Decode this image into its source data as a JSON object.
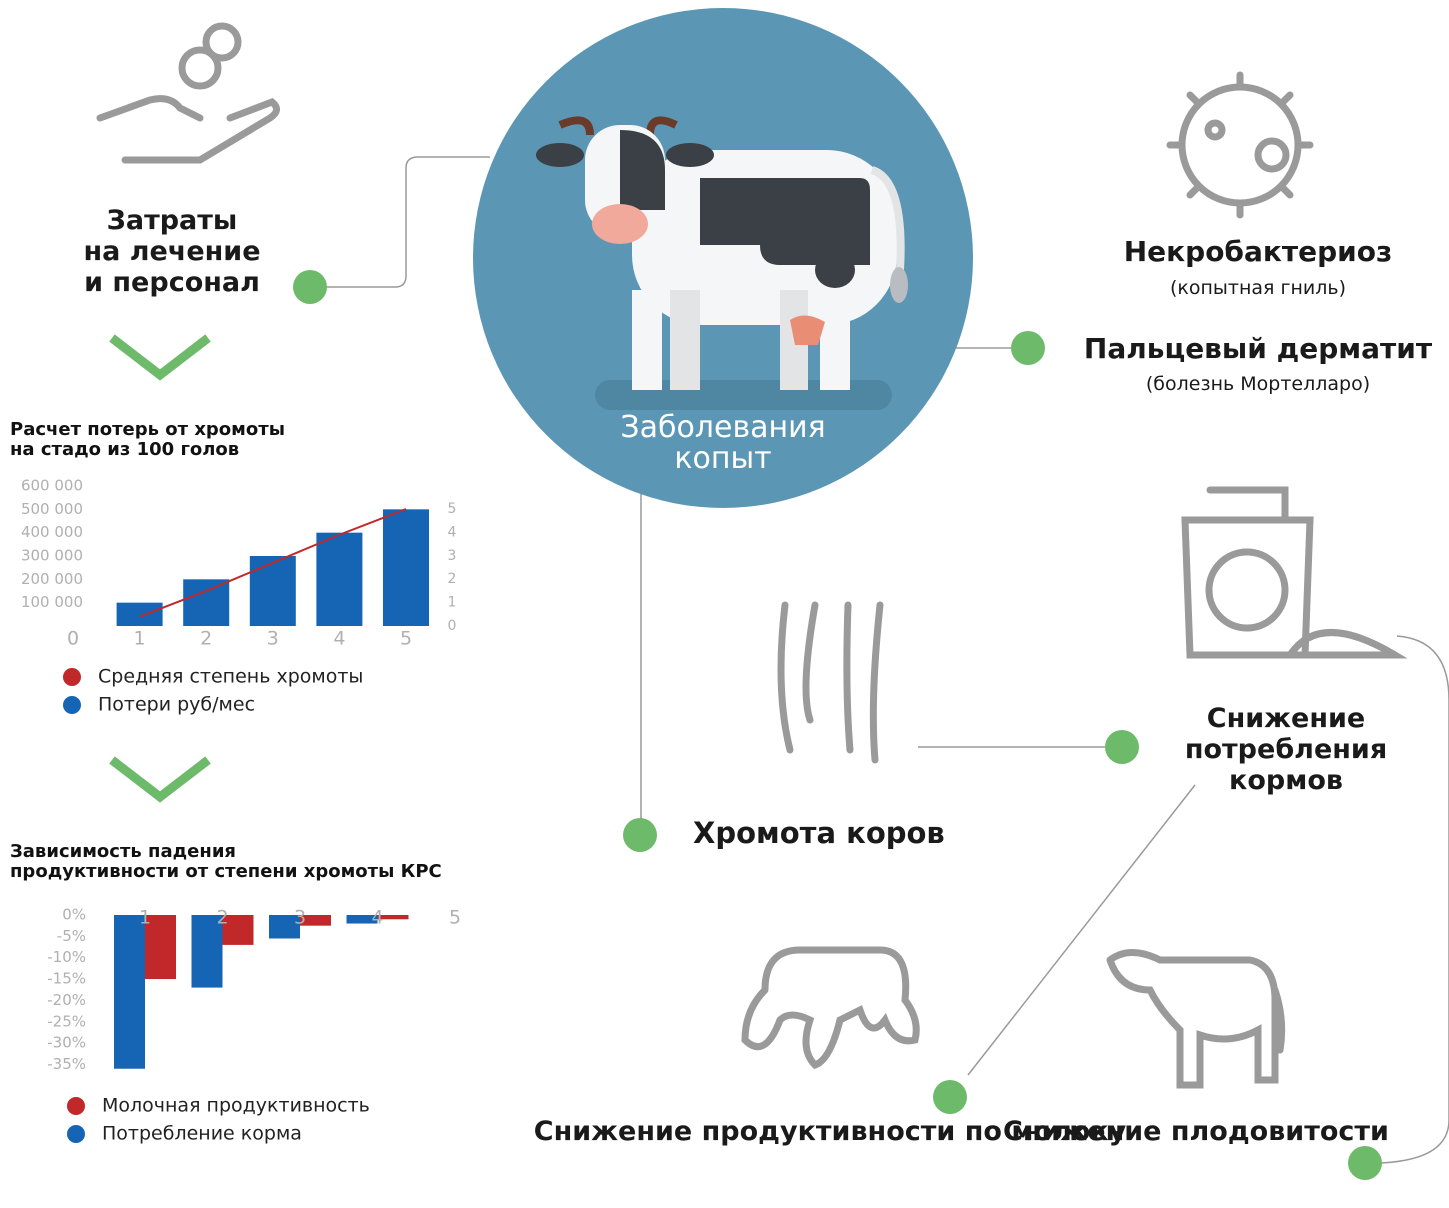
{
  "nodes": {
    "costs": "Затраты\nна лечение\nи персонал",
    "center": "Заболевания\nкопыт",
    "necro": {
      "title": "Некробактериоз",
      "subtitle": "(копытная гниль)"
    },
    "dermatitis": {
      "title": "Пальцевый дерматит",
      "subtitle": "(болезнь Мортелларо)"
    },
    "feed": "Снижение\nпотребления\nкормов",
    "lameness": "Хромота коров",
    "milk": "Снижение\nпродуктивности\nпо молоку",
    "fertility": "Снижение\nплодовитости"
  },
  "chart_data": [
    {
      "type": "bar",
      "title": "Расчет потерь от хромоты\nна стадо из 100 голов",
      "x": [
        1,
        2,
        3,
        4,
        5
      ],
      "series": [
        {
          "name": "Средняя степень хромоты",
          "color": "#c0282a",
          "type": "line",
          "axis": "y2",
          "values": [
            0.4,
            1.5,
            2.7,
            3.9,
            5
          ]
        },
        {
          "name": "Потери руб/мес",
          "color": "#1565b4",
          "type": "bar",
          "values": [
            100000,
            200000,
            300000,
            400000,
            500000
          ]
        }
      ],
      "xlim": [
        0,
        5
      ],
      "xticks": [
        0,
        1,
        2,
        3,
        4,
        5
      ],
      "ylim": [
        0,
        600000
      ],
      "yticks": [
        {
          "value": 100000,
          "label": "100 000"
        },
        {
          "value": 200000,
          "label": "200 000"
        },
        {
          "value": 300000,
          "label": "300 000"
        },
        {
          "value": 400000,
          "label": "400 000"
        },
        {
          "value": 500000,
          "label": "500 000"
        },
        {
          "value": 600000,
          "label": "600 000"
        }
      ],
      "y2lim": [
        0,
        5
      ],
      "y2ticks": [
        0,
        1,
        2,
        3,
        4,
        5
      ],
      "grid": false
    },
    {
      "type": "bar",
      "title": "Зависимость падения\nпродуктивности от степени хромоты КРС",
      "categories": [
        "1",
        "2",
        "3",
        "4",
        "5"
      ],
      "series": [
        {
          "name": "Молочная продуктивность",
          "color": "#c0282a",
          "values": [
            -15,
            -7,
            -2.5,
            -1,
            null
          ]
        },
        {
          "name": "Потребление корма",
          "color": "#1565b4",
          "values": [
            -36,
            -17,
            -5.5,
            -2,
            null
          ]
        }
      ],
      "ylim": [
        -37,
        0
      ],
      "yticks": [
        {
          "value": 0,
          "label": "0%"
        },
        {
          "value": -5,
          "label": "-5%"
        },
        {
          "value": -10,
          "label": "-10%"
        },
        {
          "value": -15,
          "label": "-15%"
        },
        {
          "value": -20,
          "label": "-20%"
        },
        {
          "value": -25,
          "label": "-25%"
        },
        {
          "value": -30,
          "label": "-30%"
        },
        {
          "value": -35,
          "label": "-35%"
        }
      ],
      "grid": false
    }
  ]
}
